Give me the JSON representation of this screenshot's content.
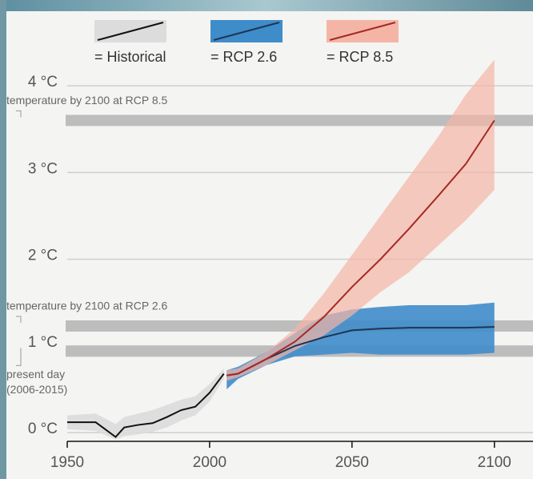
{
  "chart_data": {
    "type": "band-line",
    "xlim": [
      1950,
      2113
    ],
    "ylim": [
      -0.1,
      4.25
    ],
    "xticks": [
      1950,
      2000,
      2050,
      2100
    ],
    "yticks": [
      {
        "value": 0,
        "label": "0 °C"
      },
      {
        "value": 1,
        "label": "1 °C"
      },
      {
        "value": 2,
        "label": "2 °C"
      },
      {
        "value": 3,
        "label": "3 °C"
      },
      {
        "value": 4,
        "label": "4 °C"
      }
    ],
    "grid": true,
    "series": [
      {
        "name": "= Historical",
        "color": "#111111",
        "band_color": "#dcdcdc",
        "x": [
          1950,
          1955,
          1960,
          1967,
          1970,
          1975,
          1980,
          1985,
          1990,
          1995,
          2000,
          2005
        ],
        "values": [
          0.12,
          0.12,
          0.12,
          -0.05,
          0.06,
          0.09,
          0.11,
          0.18,
          0.26,
          0.3,
          0.46,
          0.68
        ],
        "upper": [
          0.2,
          0.21,
          0.22,
          0.1,
          0.18,
          0.22,
          0.26,
          0.32,
          0.38,
          0.42,
          0.56,
          0.74
        ],
        "lower": [
          0.04,
          0.03,
          0.02,
          -0.08,
          -0.04,
          -0.02,
          0.01,
          0.06,
          0.14,
          0.2,
          0.36,
          0.62
        ]
      },
      {
        "name": "= RCP 2.6",
        "color": "#1f3550",
        "band_color": "#3f8ccb",
        "x": [
          2006,
          2010,
          2020,
          2030,
          2040,
          2050,
          2060,
          2070,
          2080,
          2090,
          2100
        ],
        "values": [
          0.66,
          0.68,
          0.85,
          1.0,
          1.1,
          1.18,
          1.2,
          1.21,
          1.21,
          1.21,
          1.22
        ],
        "upper": [
          0.72,
          0.76,
          0.93,
          1.15,
          1.35,
          1.42,
          1.45,
          1.47,
          1.47,
          1.47,
          1.5
        ],
        "lower": [
          0.5,
          0.62,
          0.78,
          0.88,
          0.9,
          0.92,
          0.9,
          0.9,
          0.9,
          0.9,
          0.92
        ]
      },
      {
        "name": "= RCP 8.5",
        "color": "#a52a24",
        "band_color": "#f5b5a6",
        "x": [
          2006,
          2010,
          2020,
          2030,
          2040,
          2050,
          2060,
          2070,
          2080,
          2090,
          2100
        ],
        "values": [
          0.66,
          0.68,
          0.85,
          1.05,
          1.33,
          1.68,
          2.0,
          2.35,
          2.72,
          3.1,
          3.6
        ],
        "upper": [
          0.72,
          0.74,
          0.93,
          1.2,
          1.6,
          2.05,
          2.5,
          2.95,
          3.4,
          3.9,
          4.3
        ],
        "lower": [
          0.6,
          0.64,
          0.78,
          0.95,
          1.12,
          1.35,
          1.62,
          1.85,
          2.15,
          2.45,
          2.8
        ]
      }
    ],
    "reference_lines": [
      {
        "value": 3.6,
        "label": [
          "temperature by 2100 at RCP 8.5"
        ]
      },
      {
        "value": 1.23,
        "label": [
          "temperature by 2100 at RCP 2.6"
        ]
      },
      {
        "value": 0.94,
        "label": [
          "present day",
          "(2006-2015)"
        ]
      }
    ]
  }
}
